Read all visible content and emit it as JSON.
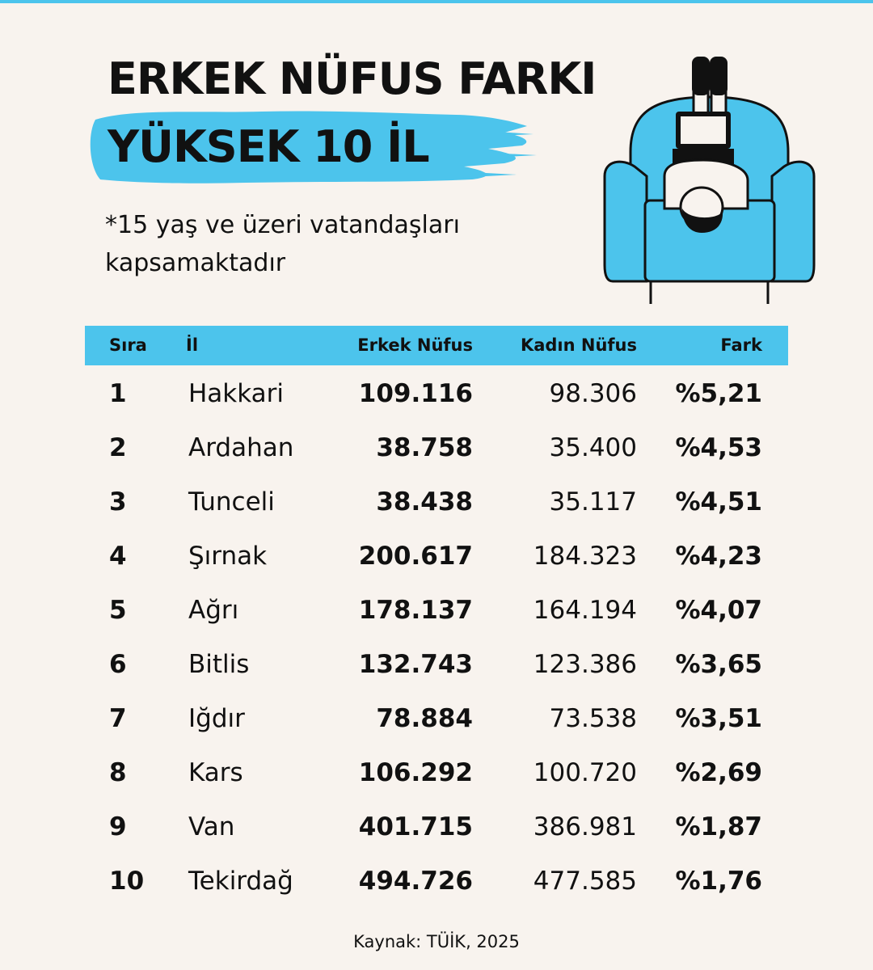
{
  "title": {
    "line1": "ERKEK NÜFUS FARKI",
    "line2": "YÜKSEK 10 İL"
  },
  "note": "*15 yaş ve üzeri vatandaşları kapsamaktadır",
  "colors": {
    "accent": "#4cc4ec",
    "background": "#f8f3ee",
    "text": "#111111"
  },
  "illustration": {
    "icon": "person-in-armchair-with-laptop-icon"
  },
  "table": {
    "headers": {
      "rank": "Sıra",
      "city": "İl",
      "male": "Erkek Nüfus",
      "female": "Kadın Nüfus",
      "diff": "Fark"
    },
    "rows": [
      {
        "rank": "1",
        "city": "Hakkari",
        "male": "109.116",
        "female": "98.306",
        "diff": "%5,21"
      },
      {
        "rank": "2",
        "city": "Ardahan",
        "male": "38.758",
        "female": "35.400",
        "diff": "%4,53"
      },
      {
        "rank": "3",
        "city": "Tunceli",
        "male": "38.438",
        "female": "35.117",
        "diff": "%4,51"
      },
      {
        "rank": "4",
        "city": "Şırnak",
        "male": "200.617",
        "female": "184.323",
        "diff": "%4,23"
      },
      {
        "rank": "5",
        "city": "Ağrı",
        "male": "178.137",
        "female": "164.194",
        "diff": "%4,07"
      },
      {
        "rank": "6",
        "city": "Bitlis",
        "male": "132.743",
        "female": "123.386",
        "diff": "%3,65"
      },
      {
        "rank": "7",
        "city": "Iğdır",
        "male": "78.884",
        "female": "73.538",
        "diff": "%3,51"
      },
      {
        "rank": "8",
        "city": "Kars",
        "male": "106.292",
        "female": "100.720",
        "diff": "%2,69"
      },
      {
        "rank": "9",
        "city": "Van",
        "male": "401.715",
        "female": "386.981",
        "diff": "%1,87"
      },
      {
        "rank": "10",
        "city": "Tekirdağ",
        "male": "494.726",
        "female": "477.585",
        "diff": "%1,76"
      }
    ]
  },
  "source": "Kaynak: TÜİK, 2025"
}
